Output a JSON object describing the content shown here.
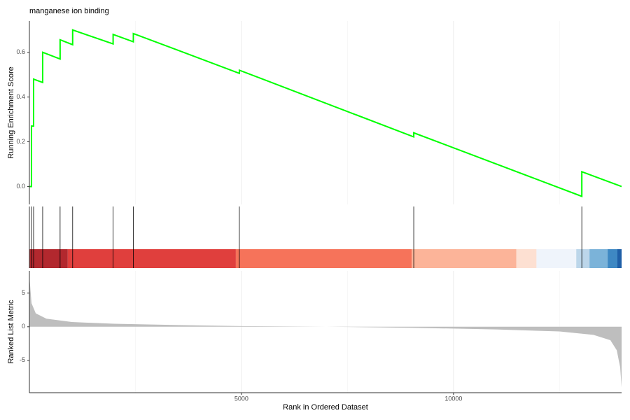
{
  "chart_data": {
    "type": "gsea",
    "title": "manganese ion binding",
    "x_label": "Rank in Ordered Dataset",
    "xlim": [
      0,
      13964
    ],
    "xticks": [
      5000,
      10000
    ],
    "x_minor_ticks": [
      2500,
      7500,
      12500
    ],
    "grid": true,
    "enrichment": {
      "y_label": "Running Enrichment Score",
      "color": "#00ff00",
      "x": [
        0,
        49,
        49,
        99,
        99,
        313,
        313,
        724,
        724,
        1020,
        1020,
        1974,
        1974,
        2451,
        2451,
        4951,
        4951,
        9063,
        9063,
        13026,
        13026,
        13964
      ],
      "values": [
        0,
        0,
        0.27,
        0.27,
        0.48,
        0.465,
        0.6,
        0.57,
        0.656,
        0.634,
        0.7,
        0.6375,
        0.68,
        0.647,
        0.684,
        0.506,
        0.52,
        0.222,
        0.24,
        -0.044,
        0.066,
        0
      ],
      "ylim": [
        -0.08,
        0.74
      ],
      "yticks": [
        {
          "value": 0,
          "label": "0.0"
        },
        {
          "value": 0.2,
          "label": "0.2"
        },
        {
          "value": 0.4,
          "label": "0.4"
        },
        {
          "value": 0.6,
          "label": "0.6"
        }
      ]
    },
    "hits": {
      "color": "#000000",
      "x": [
        0,
        49,
        99,
        313,
        724,
        1020,
        1974,
        2451,
        4951,
        9063,
        13026
      ]
    },
    "color_bar": {
      "breaks": [
        0,
        905,
        4868,
        9013,
        11480,
        11957,
        12895,
        13207,
        13635,
        13865,
        13964
      ],
      "colors": [
        "#b2282e",
        "#e03f3d",
        "#f6735a",
        "#fcb499",
        "#fde0d2",
        "#eff4fb",
        "#bcd6ea",
        "#7bb3d9",
        "#3e88c3",
        "#1f5fa7"
      ]
    },
    "ranked_metric": {
      "y_label": "Ranked List Metric",
      "color": "#bebebe",
      "x": [
        0,
        50,
        150,
        400,
        1000,
        2000,
        3500,
        5000,
        7000,
        9000,
        11000,
        12500,
        13300,
        13700,
        13850,
        13930,
        13964
      ],
      "values": [
        7.5,
        3.5,
        2,
        1.2,
        0.7,
        0.45,
        0.25,
        0.1,
        0,
        -0.15,
        -0.4,
        -0.7,
        -1.2,
        -2,
        -3.5,
        -6,
        -9
      ],
      "ylim": [
        -9.8,
        8.3
      ],
      "yticks": [
        -5,
        0,
        5
      ]
    }
  }
}
